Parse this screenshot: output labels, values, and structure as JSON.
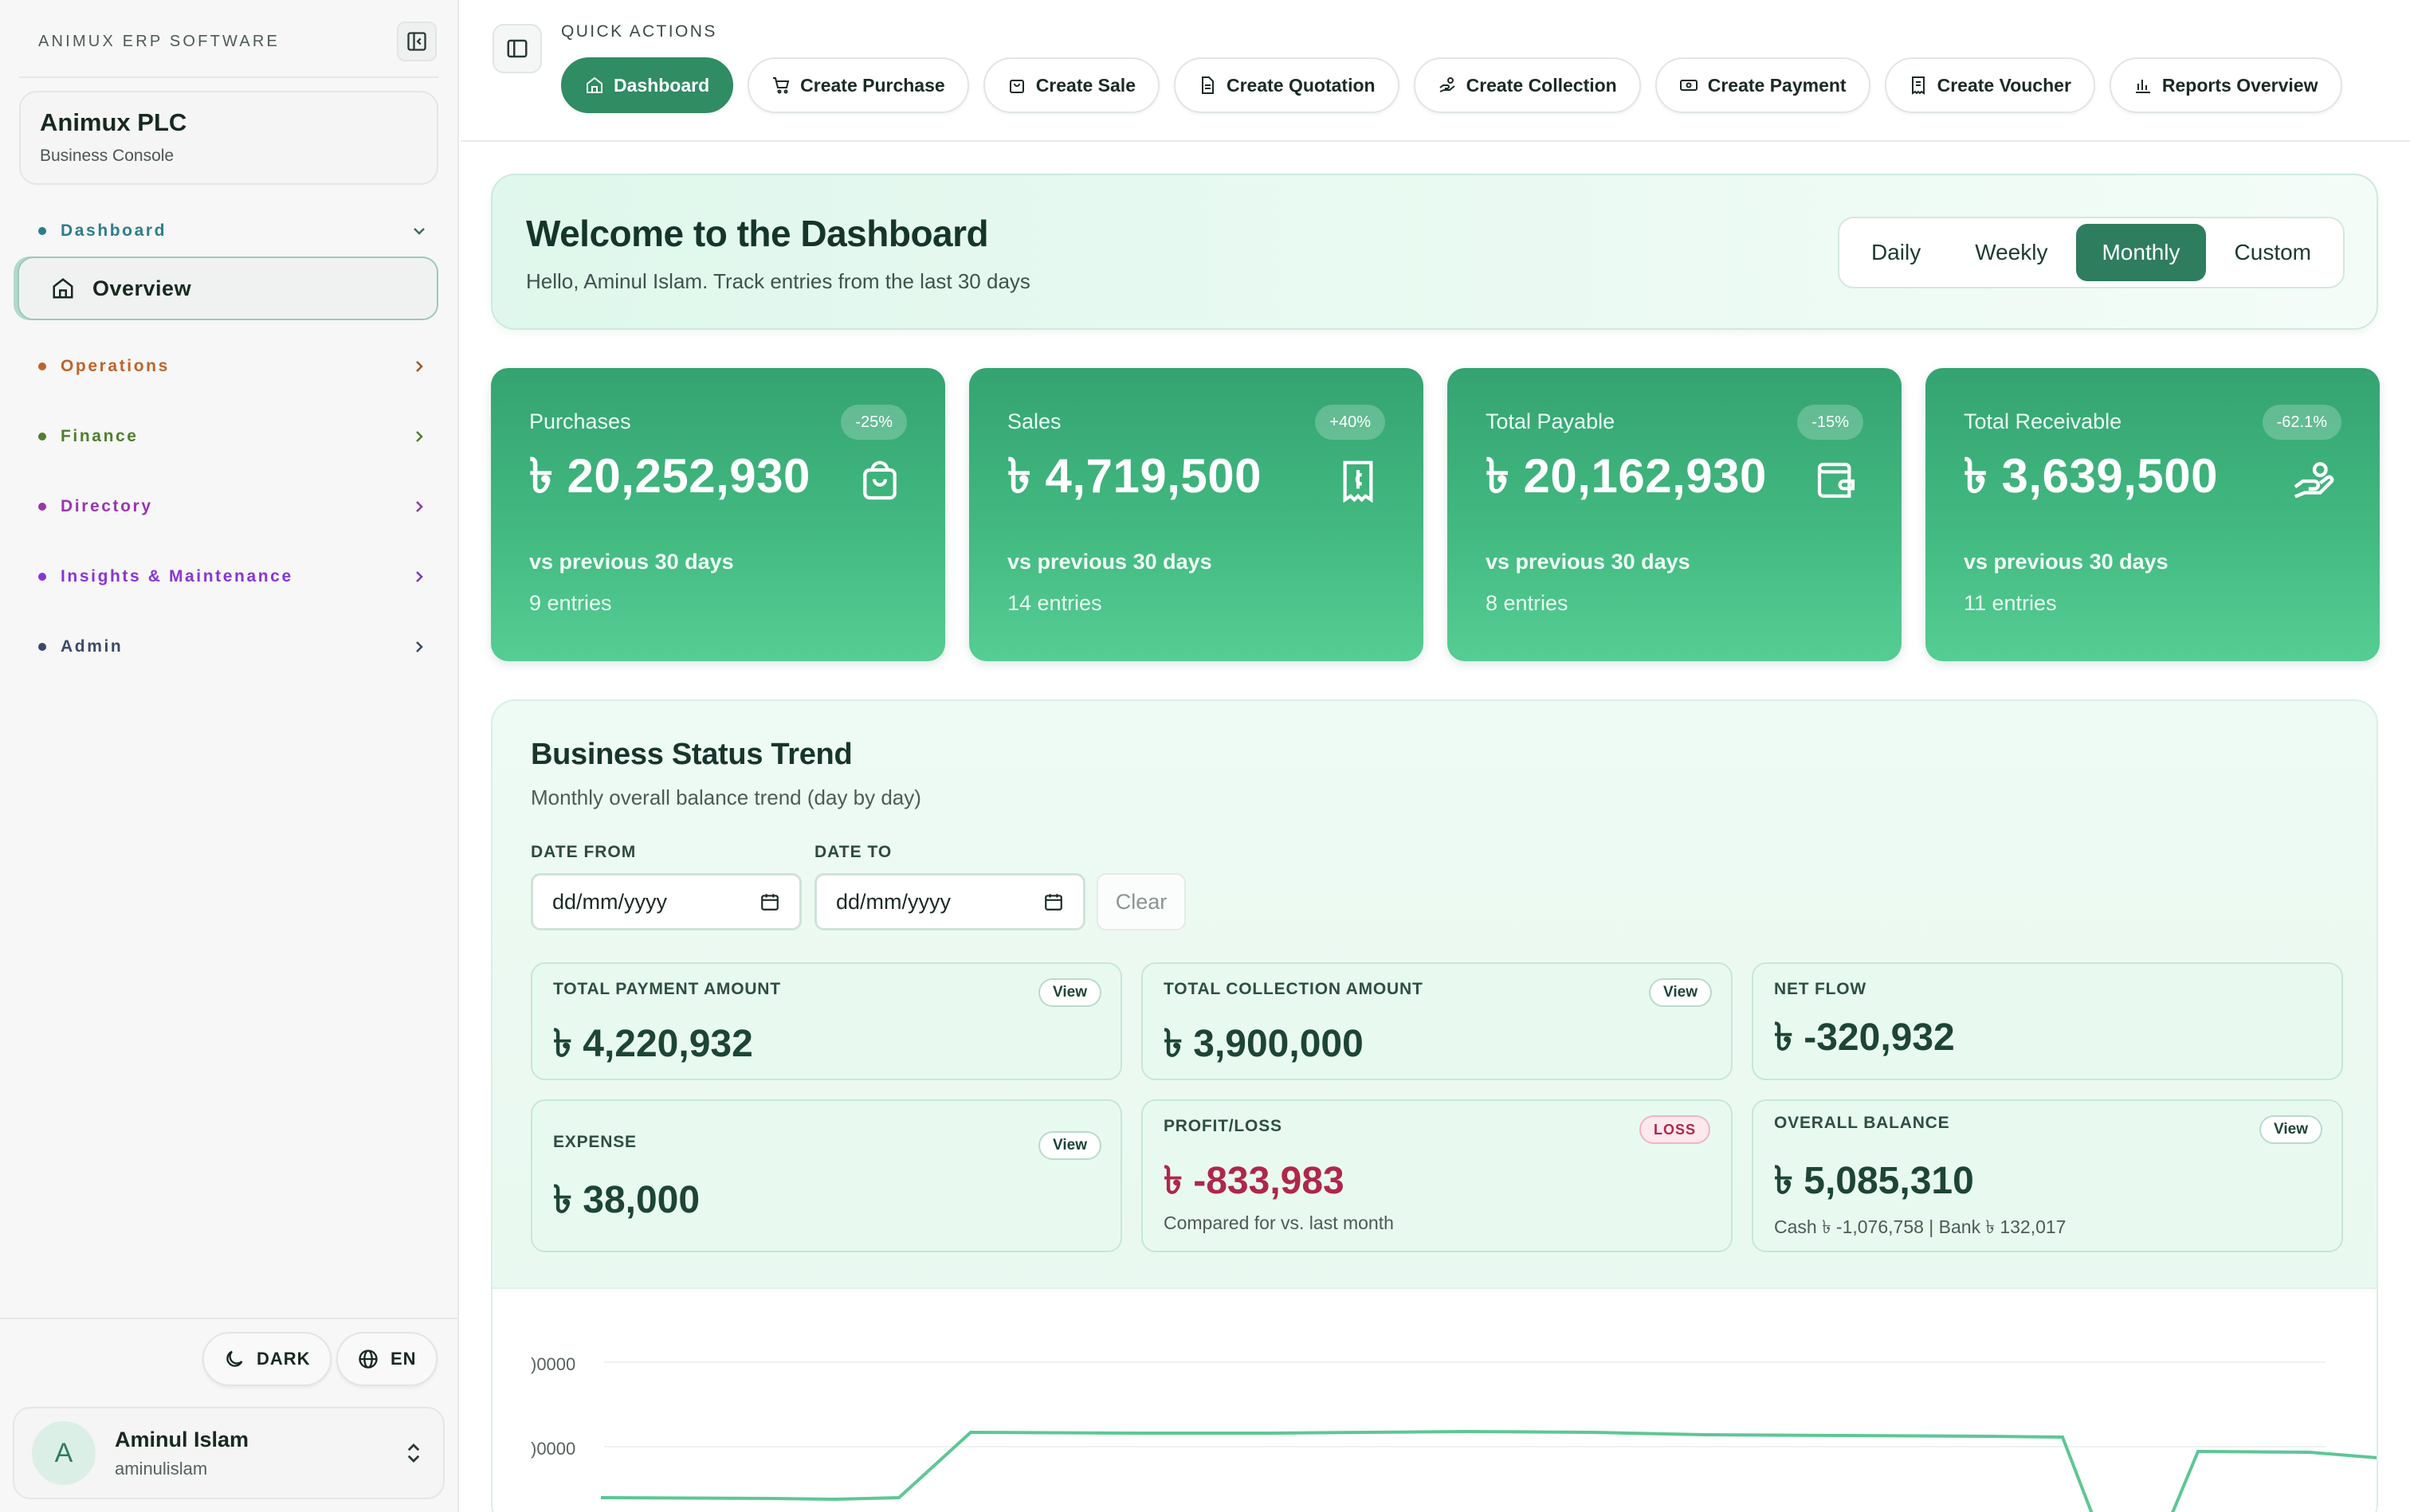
{
  "sidebar": {
    "brand": "ANIMUX ERP SOFTWARE",
    "company": {
      "name": "Animux PLC",
      "subtitle": "Business Console"
    },
    "sections": [
      {
        "label": "Dashboard",
        "color": "#2e7d8c",
        "expanded": true
      },
      {
        "label": "Operations",
        "color": "#c0632a",
        "expanded": false
      },
      {
        "label": "Finance",
        "color": "#4d7f2e",
        "expanded": false
      },
      {
        "label": "Directory",
        "color": "#9b34b4",
        "expanded": false
      },
      {
        "label": "Insights & Maintenance",
        "color": "#8a34d8",
        "expanded": false
      },
      {
        "label": "Admin",
        "color": "#3a4a6b",
        "expanded": false
      }
    ],
    "active_item": "Overview",
    "theme_label": "DARK",
    "language_label": "EN",
    "user": {
      "initial": "A",
      "name": "Aminul Islam",
      "handle": "aminulislam"
    }
  },
  "topbar": {
    "quick_actions_label": "QUICK ACTIONS",
    "actions": [
      {
        "label": "Dashboard",
        "icon": "home-icon",
        "active": true
      },
      {
        "label": "Create Purchase",
        "icon": "cart-icon",
        "active": false
      },
      {
        "label": "Create Sale",
        "icon": "bag-icon",
        "active": false
      },
      {
        "label": "Create Quotation",
        "icon": "document-icon",
        "active": false
      },
      {
        "label": "Create Collection",
        "icon": "hand-coins-icon",
        "active": false
      },
      {
        "label": "Create Payment",
        "icon": "banknote-icon",
        "active": false
      },
      {
        "label": "Create Voucher",
        "icon": "receipt-icon",
        "active": false
      },
      {
        "label": "Reports Overview",
        "icon": "bar-chart-icon",
        "active": false
      }
    ]
  },
  "welcome": {
    "title": "Welcome to the Dashboard",
    "subtitle": "Hello, Aminul Islam. Track entries from the last 30 days",
    "ranges": [
      "Daily",
      "Weekly",
      "Monthly",
      "Custom"
    ],
    "active_range": "Monthly"
  },
  "stats": [
    {
      "title": "Purchases",
      "value": "৳ 20,252,930",
      "badge": "-25%",
      "compare": "vs previous 30 days",
      "entries": "9 entries",
      "icon": "shopping-bag-icon"
    },
    {
      "title": "Sales",
      "value": "৳ 4,719,500",
      "badge": "+40%",
      "compare": "vs previous 30 days",
      "entries": "14 entries",
      "icon": "receipt-icon"
    },
    {
      "title": "Total Payable",
      "value": "৳ 20,162,930",
      "badge": "-15%",
      "compare": "vs previous 30 days",
      "entries": "8 entries",
      "icon": "wallet-icon"
    },
    {
      "title": "Total Receivable",
      "value": "৳ 3,639,500",
      "badge": "-62.1%",
      "compare": "vs previous 30 days",
      "entries": "11 entries",
      "icon": "hand-coins-icon"
    }
  ],
  "trend": {
    "title": "Business Status Trend",
    "subtitle": "Monthly overall balance trend (day by day)",
    "date_from_label": "DATE FROM",
    "date_to_label": "DATE TO",
    "date_placeholder": "dd/mm/yyyy",
    "clear_label": "Clear",
    "view_label": "View",
    "metrics": {
      "total_payment": {
        "label": "TOTAL PAYMENT AMOUNT",
        "value": "৳ 4,220,932"
      },
      "total_collection": {
        "label": "TOTAL COLLECTION AMOUNT",
        "value": "৳ 3,900,000"
      },
      "net_flow": {
        "label": "NET FLOW",
        "value": "৳ -320,932"
      },
      "expense": {
        "label": "EXPENSE",
        "value": "৳ 38,000"
      },
      "profit_loss": {
        "label": "PROFIT/LOSS",
        "value": "৳ -833,983",
        "badge": "LOSS",
        "note": "Compared for vs. last month"
      },
      "overall_balance": {
        "label": "OVERALL BALANCE",
        "value": "৳ 5,085,310",
        "note": "Cash ৳ -1,076,758 | Bank ৳ 132,017"
      }
    },
    "tick_labels": [
      ")0000",
      ")0000"
    ],
    "line_color": "#5dc795"
  }
}
